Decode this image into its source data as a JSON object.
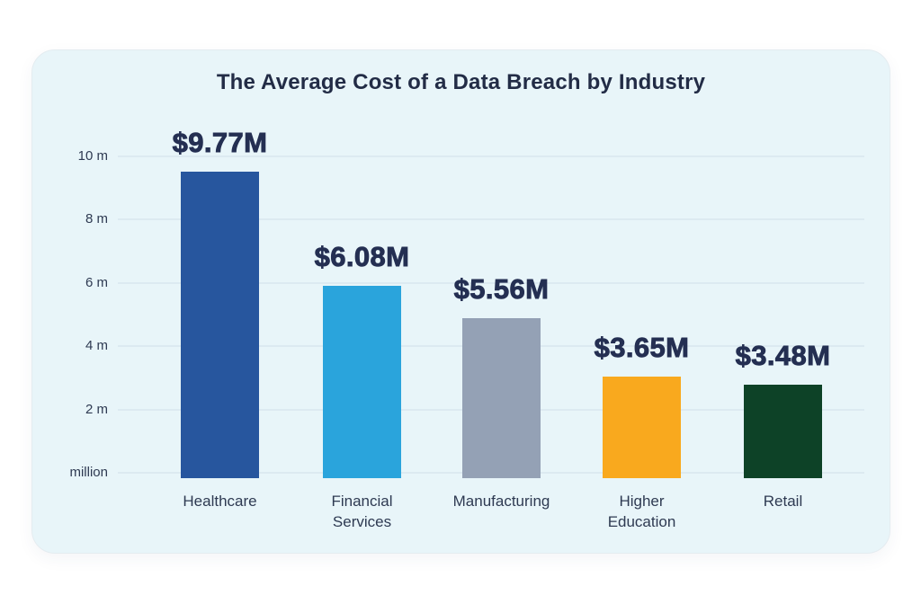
{
  "chart_data": {
    "type": "bar",
    "title": "The Average Cost of a Data Breach by Industry",
    "categories": [
      "Healthcare",
      "Financial Services",
      "Manufacturing",
      "Higher Education",
      "Retail"
    ],
    "values": [
      9.77,
      6.08,
      5.56,
      3.65,
      3.48
    ],
    "bars": [
      {
        "category": "Healthcare",
        "label_display": "Healthcare",
        "value": 9.77,
        "value_label": "$9.77M",
        "color": "#27569E"
      },
      {
        "category": "Financial Services",
        "label_display": "Financial\nServices",
        "value": 6.08,
        "value_label": "$6.08M",
        "color": "#2AA4DC"
      },
      {
        "category": "Manufacturing",
        "label_display": "Manufacturing",
        "value": 5.56,
        "value_label": "$5.56M",
        "color": "#94A1B5"
      },
      {
        "category": "Higher Education",
        "label_display": "Higher\nEducation",
        "value": 3.65,
        "value_label": "$3.65M",
        "color": "#F9A91E"
      },
      {
        "category": "Retail",
        "label_display": "Retail",
        "value": 3.48,
        "value_label": "$3.48M",
        "color": "#0D4227"
      }
    ],
    "yticks": [
      "million",
      "2 m",
      "4 m",
      "6 m",
      "8 m",
      "10 m"
    ],
    "ylabel": "million",
    "ylim": [
      0,
      10
    ],
    "grid": true,
    "legend": false,
    "colors": {
      "page_background": "#FFFFFF",
      "card_background": "#E8F5F9",
      "title_text": "#222C46",
      "value_label_text": "#242F52",
      "axis_label_text": "#2E3A52",
      "gridline": "#DCEAF1"
    }
  }
}
